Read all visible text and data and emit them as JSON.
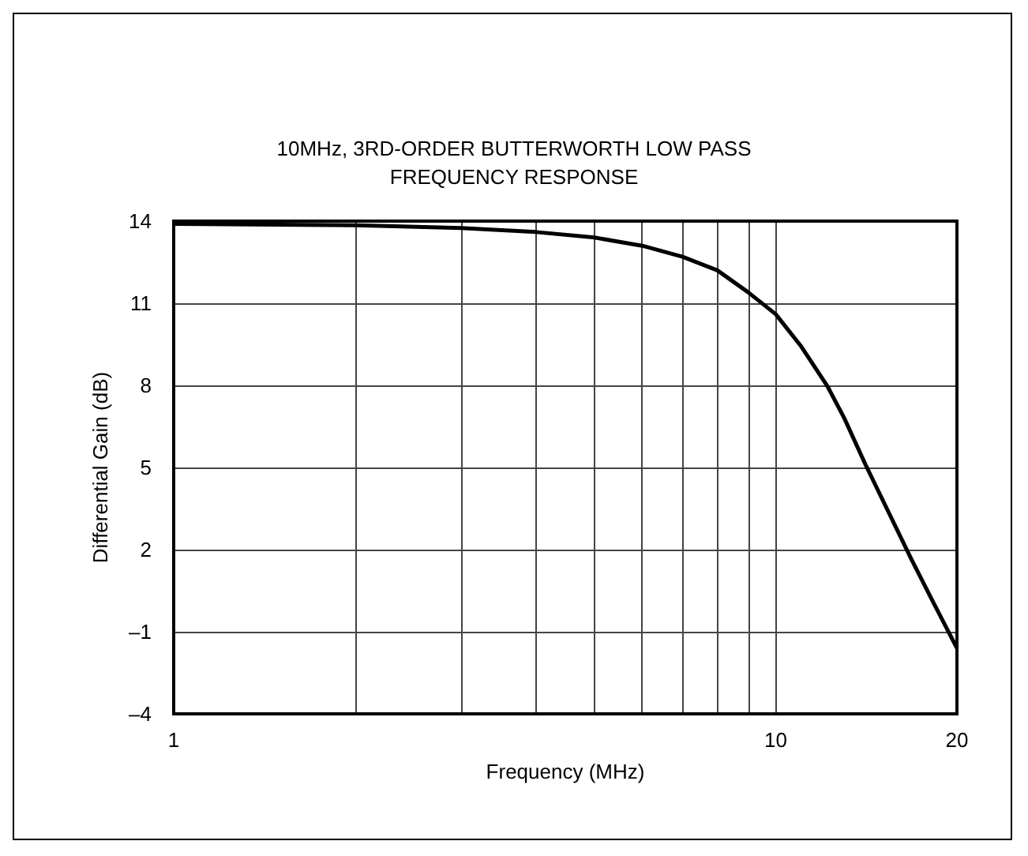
{
  "chart_data": {
    "type": "line",
    "title": "10MHz, 3RD-ORDER BUTTERWORTH LOW PASS\nFREQUENCY RESPONSE",
    "xlabel": "Frequency (MHz)",
    "ylabel": "Differential Gain (dB)",
    "log": "x",
    "x": [
      1,
      2,
      3,
      4,
      5,
      6,
      7,
      8,
      9,
      10,
      11,
      12.2,
      13,
      14.1,
      16.8,
      18,
      20
    ],
    "series": [
      {
        "color": "#000000",
        "values": [
          13.9,
          13.85,
          13.75,
          13.6,
          13.4,
          13.1,
          12.7,
          12.2,
          11.4,
          10.6,
          9.45,
          7.95,
          6.8,
          5.1,
          1.65,
          0.35,
          -1.6
        ]
      }
    ],
    "xlim": [
      1,
      20
    ],
    "xticks": [
      1,
      {
        "value": 2,
        "label": null
      },
      {
        "value": 3,
        "label": null
      },
      {
        "value": 4,
        "label": null
      },
      {
        "value": 5,
        "label": null
      },
      {
        "value": 6,
        "label": null
      },
      {
        "value": 7,
        "label": null
      },
      {
        "value": 8,
        "label": null
      },
      {
        "value": 9,
        "label": null
      },
      10,
      20
    ],
    "ylim": [
      -4,
      14
    ],
    "yticks": [
      {
        "value": -4,
        "label": "–4"
      },
      {
        "value": -1,
        "label": "–1"
      },
      2,
      5,
      8,
      11,
      14
    ],
    "grid": true,
    "marker": "none",
    "line_style": "solid"
  }
}
